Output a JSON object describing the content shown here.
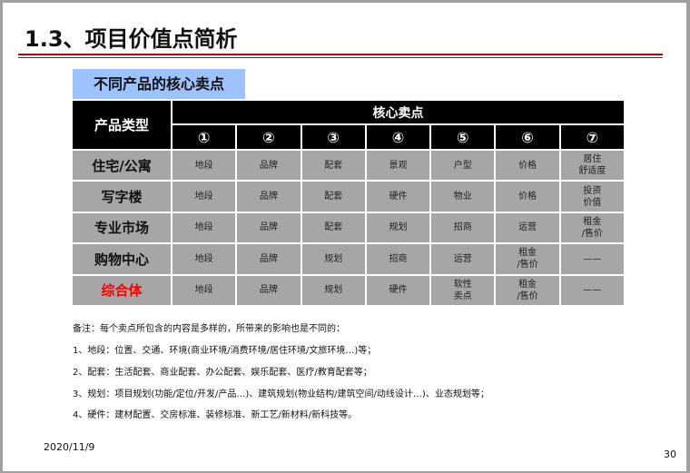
{
  "title": "1.3、项目价值点简析",
  "subtitle": "不同产品的核心卖点",
  "table": {
    "corner": "产品类型",
    "group_header": "核心卖点",
    "columns": [
      "①",
      "②",
      "③",
      "④",
      "⑤",
      "⑥",
      "⑦"
    ],
    "rows": [
      {
        "label": "住宅/公寓",
        "cells": [
          "地段",
          "品牌",
          "配套",
          "景观",
          "户型",
          "价格",
          "居住\n舒适度"
        ]
      },
      {
        "label": "写字楼",
        "cells": [
          "地段",
          "品牌",
          "配套",
          "硬件",
          "物业",
          "价格",
          "投资\n价值"
        ]
      },
      {
        "label": "专业市场",
        "cells": [
          "地段",
          "品牌",
          "配套",
          "规划",
          "招商",
          "运营",
          "租金\n/售价"
        ]
      },
      {
        "label": "购物中心",
        "cells": [
          "地段",
          "品牌",
          "规划",
          "招商",
          "运营",
          "租金\n/售价",
          "——"
        ]
      },
      {
        "label": "综合体",
        "highlight": true,
        "cells": [
          "地段",
          "品牌",
          "规划",
          "硬件",
          "软性\n卖点",
          "租金\n/售价",
          "——"
        ]
      }
    ]
  },
  "notes": [
    "备注：每个卖点所包含的内容是多样的，所带来的影响也是不同的：",
    "1、地段：位置、交通、环境(商业环境/消费环境/居住环境/文旅环境…)等；",
    "2、配套：生活配套、商业配套、办公配套、娱乐配套、医疗/教育配套等；",
    "3、规划：项目规划(功能/定位/开发/产品…)、建筑规划(物业结构/建筑空间/动线设计…)、业态规划等；",
    "4、硬件：建材配置、交房标准、装修标准、新工艺/新材料/新科技等。"
  ],
  "footer": {
    "date": "2020/11/9",
    "page": "30"
  },
  "colors": {
    "rule": "#c00000",
    "subtitle_bg": "#9cc3ff",
    "header_bg": "#000000",
    "cell_bg": "#a6a6a6",
    "highlight": "#ff0000"
  }
}
